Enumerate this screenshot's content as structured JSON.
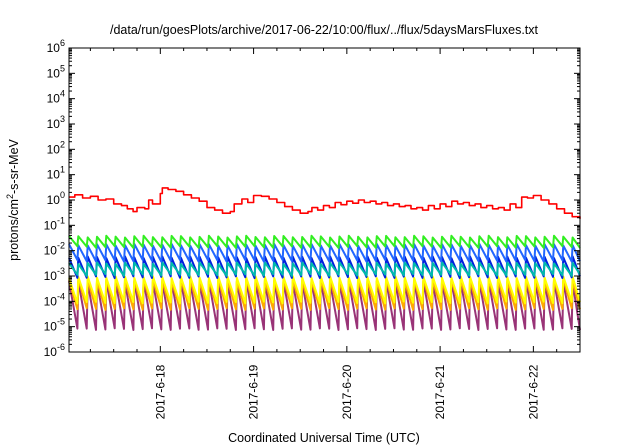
{
  "chart_data": {
    "type": "line",
    "title": "/data/run/goesPlots/archive/2017-06-22/10:00/flux/../flux/5daysMarsFluxes.txt",
    "xlabel": "Coordinated Universal Time (UTC)",
    "ylabel": {
      "prefix": "protons/cm",
      "superscript": "2",
      "suffix": "-s-sr-MeV"
    },
    "y_scale": "log",
    "ylim_exponents": [
      -6,
      6
    ],
    "y_tick_base": "10",
    "y_tick_exponents": [
      "6",
      "5",
      "4",
      "3",
      "2",
      "1",
      "0",
      "-1",
      "-2",
      "-3",
      "-4",
      "-5",
      "-6"
    ],
    "xlim": [
      "2017-06-17 00:30",
      "2017-06-22 12:00"
    ],
    "x_tick_dates": [
      "2017-06-18",
      "2017-06-19",
      "2017-06-20",
      "2017-06-21",
      "2017-06-22"
    ],
    "x_tick_labels": [
      "2017-6-18",
      "2017-6-19",
      "2017-6-20",
      "2017-6-21",
      "2017-6-22"
    ],
    "grid": false,
    "legend": "none",
    "sawtooth_cycles_per_day": 10,
    "series": [
      {
        "color": "#ff0000",
        "style": "steps",
        "points": [
          [
            "2017-06-17 00:30",
            1.3
          ],
          [
            "2017-06-17 02:00",
            1.6
          ],
          [
            "2017-06-17 04:00",
            1.2
          ],
          [
            "2017-06-17 06:00",
            1.4
          ],
          [
            "2017-06-17 08:00",
            1.0
          ],
          [
            "2017-06-17 10:00",
            1.1
          ],
          [
            "2017-06-17 12:00",
            0.7
          ],
          [
            "2017-06-17 14:00",
            0.6
          ],
          [
            "2017-06-17 15:30",
            0.45
          ],
          [
            "2017-06-17 17:00",
            0.35
          ],
          [
            "2017-06-17 18:00",
            0.5
          ],
          [
            "2017-06-17 20:00",
            0.45
          ],
          [
            "2017-06-17 21:00",
            1.0
          ],
          [
            "2017-06-17 22:00",
            0.7
          ],
          [
            "2017-06-18 00:00",
            1.8
          ],
          [
            "2017-06-18 00:30",
            3.0
          ],
          [
            "2017-06-18 02:00",
            2.6
          ],
          [
            "2017-06-18 04:00",
            2.2
          ],
          [
            "2017-06-18 06:00",
            1.6
          ],
          [
            "2017-06-18 08:00",
            1.2
          ],
          [
            "2017-06-18 10:00",
            0.9
          ],
          [
            "2017-06-18 12:00",
            0.5
          ],
          [
            "2017-06-18 14:00",
            0.4
          ],
          [
            "2017-06-18 16:00",
            0.3
          ],
          [
            "2017-06-18 18:00",
            0.35
          ],
          [
            "2017-06-18 19:00",
            0.7
          ],
          [
            "2017-06-18 21:00",
            1.1
          ],
          [
            "2017-06-18 22:30",
            0.8
          ],
          [
            "2017-06-19 00:00",
            1.5
          ],
          [
            "2017-06-19 02:00",
            1.4
          ],
          [
            "2017-06-19 04:00",
            1.1
          ],
          [
            "2017-06-19 06:00",
            0.8
          ],
          [
            "2017-06-19 08:00",
            0.55
          ],
          [
            "2017-06-19 10:00",
            0.4
          ],
          [
            "2017-06-19 12:00",
            0.3
          ],
          [
            "2017-06-19 14:00",
            0.35
          ],
          [
            "2017-06-19 15:00",
            0.5
          ],
          [
            "2017-06-19 16:30",
            0.4
          ],
          [
            "2017-06-19 18:00",
            0.6
          ],
          [
            "2017-06-19 19:30",
            0.5
          ],
          [
            "2017-06-19 21:00",
            0.8
          ],
          [
            "2017-06-19 22:30",
            0.65
          ],
          [
            "2017-06-20 00:00",
            0.9
          ],
          [
            "2017-06-20 01:30",
            0.75
          ],
          [
            "2017-06-20 03:00",
            1.0
          ],
          [
            "2017-06-20 04:30",
            0.8
          ],
          [
            "2017-06-20 06:00",
            0.9
          ],
          [
            "2017-06-20 07:30",
            0.7
          ],
          [
            "2017-06-20 09:00",
            0.8
          ],
          [
            "2017-06-20 10:30",
            0.6
          ],
          [
            "2017-06-20 12:00",
            0.7
          ],
          [
            "2017-06-20 13:30",
            0.55
          ],
          [
            "2017-06-20 15:00",
            0.6
          ],
          [
            "2017-06-20 16:30",
            0.45
          ],
          [
            "2017-06-20 18:00",
            0.5
          ],
          [
            "2017-06-20 19:30",
            0.4
          ],
          [
            "2017-06-20 21:00",
            0.6
          ],
          [
            "2017-06-20 22:30",
            0.45
          ],
          [
            "2017-06-21 00:00",
            0.7
          ],
          [
            "2017-06-21 01:30",
            0.55
          ],
          [
            "2017-06-21 03:00",
            0.9
          ],
          [
            "2017-06-21 04:30",
            0.7
          ],
          [
            "2017-06-21 06:00",
            0.8
          ],
          [
            "2017-06-21 07:30",
            0.6
          ],
          [
            "2017-06-21 09:00",
            0.7
          ],
          [
            "2017-06-21 10:30",
            0.5
          ],
          [
            "2017-06-21 12:00",
            0.6
          ],
          [
            "2017-06-21 13:30",
            0.45
          ],
          [
            "2017-06-21 15:00",
            0.5
          ],
          [
            "2017-06-21 16:30",
            0.4
          ],
          [
            "2017-06-21 18:00",
            0.7
          ],
          [
            "2017-06-21 19:30",
            0.5
          ],
          [
            "2017-06-21 21:00",
            1.3
          ],
          [
            "2017-06-21 22:30",
            1.2
          ],
          [
            "2017-06-22 00:00",
            1.5
          ],
          [
            "2017-06-22 02:00",
            1.0
          ],
          [
            "2017-06-22 04:00",
            0.7
          ],
          [
            "2017-06-22 06:00",
            0.45
          ],
          [
            "2017-06-22 08:00",
            0.3
          ],
          [
            "2017-06-22 10:00",
            0.22
          ],
          [
            "2017-06-22 12:00",
            0.18
          ]
        ]
      },
      {
        "color": "#33ee22",
        "style": "sawtooth",
        "peak": 0.036,
        "trough": 0.014
      },
      {
        "color": "#2266ff",
        "style": "sawtooth",
        "peak": 0.017,
        "trough": 0.004
      },
      {
        "color": "#00bbaa",
        "style": "sawtooth",
        "peak": 0.0032,
        "trough": 0.0011
      },
      {
        "color": "#0022dd",
        "style": "sawtooth",
        "peak": 0.0055,
        "trough": 0.0009
      },
      {
        "color": "#ffff00",
        "style": "sawtooth",
        "peak": 0.0009,
        "trough": 9e-05
      },
      {
        "color": "#ffaa00",
        "style": "sawtooth",
        "peak": 0.0007,
        "trough": 5e-05
      },
      {
        "color": "#993377",
        "style": "sawtooth",
        "peak": 0.0006,
        "trough": 8e-06
      }
    ]
  }
}
